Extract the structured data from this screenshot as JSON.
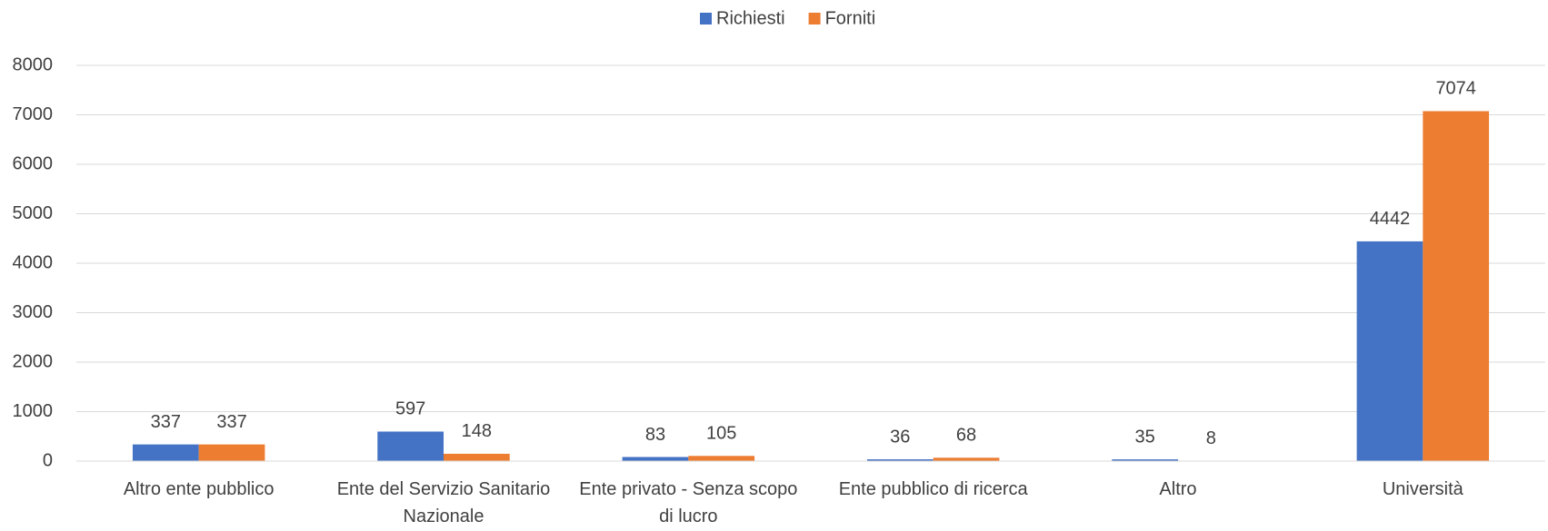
{
  "chart_data": {
    "type": "bar",
    "categories": [
      "Altro ente pubblico",
      "Ente del Servizio Sanitario Nazionale",
      "Ente privato - Senza scopo di lucro",
      "Ente pubblico di ricerca",
      "Altro",
      "Università"
    ],
    "series": [
      {
        "name": "Richiesti",
        "color": "#4472c4",
        "values": [
          337,
          597,
          83,
          36,
          35,
          4442
        ]
      },
      {
        "name": "Forniti",
        "color": "#ed7d31",
        "values": [
          337,
          148,
          105,
          68,
          8,
          7074
        ]
      }
    ],
    "ylim": [
      0,
      8000
    ],
    "yticks": [
      0,
      1000,
      2000,
      3000,
      4000,
      5000,
      6000,
      7000,
      8000
    ],
    "grid": true,
    "legend": "top"
  }
}
